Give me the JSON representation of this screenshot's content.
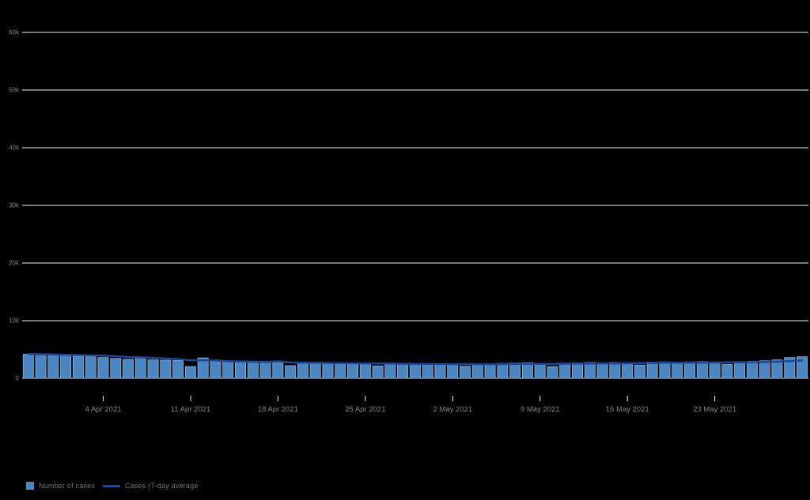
{
  "chart_data": {
    "type": "bar",
    "title": "",
    "xlabel": "",
    "ylabel": "",
    "ylim": [
      0,
      60000
    ],
    "grid": true,
    "legend_position": "bottom-left",
    "x": [
      "29 Mar 2021",
      "30 Mar 2021",
      "31 Mar 2021",
      "1 Apr 2021",
      "2 Apr 2021",
      "3 Apr 2021",
      "4 Apr 2021",
      "5 Apr 2021",
      "6 Apr 2021",
      "7 Apr 2021",
      "8 Apr 2021",
      "9 Apr 2021",
      "10 Apr 2021",
      "11 Apr 2021",
      "12 Apr 2021",
      "13 Apr 2021",
      "14 Apr 2021",
      "15 Apr 2021",
      "16 Apr 2021",
      "17 Apr 2021",
      "18 Apr 2021",
      "19 Apr 2021",
      "20 Apr 2021",
      "21 Apr 2021",
      "22 Apr 2021",
      "23 Apr 2021",
      "24 Apr 2021",
      "25 Apr 2021",
      "26 Apr 2021",
      "27 Apr 2021",
      "28 Apr 2021",
      "29 Apr 2021",
      "30 Apr 2021",
      "1 May 2021",
      "2 May 2021",
      "3 May 2021",
      "4 May 2021",
      "5 May 2021",
      "6 May 2021",
      "7 May 2021",
      "8 May 2021",
      "9 May 2021",
      "10 May 2021",
      "11 May 2021",
      "12 May 2021",
      "13 May 2021",
      "14 May 2021",
      "15 May 2021",
      "16 May 2021",
      "17 May 2021",
      "18 May 2021",
      "19 May 2021",
      "20 May 2021",
      "21 May 2021",
      "22 May 2021",
      "23 May 2021",
      "24 May 2021",
      "25 May 2021",
      "26 May 2021",
      "27 May 2021",
      "28 May 2021",
      "29 May 2021",
      "30 May 2021"
    ],
    "series": [
      {
        "name": "Number of cases",
        "type": "bar",
        "values": [
          4200,
          4150,
          4050,
          3950,
          3850,
          3750,
          3600,
          3450,
          3300,
          3650,
          3200,
          3150,
          3100,
          2050,
          3550,
          2950,
          2900,
          2850,
          2800,
          2800,
          2750,
          2200,
          2750,
          2700,
          2650,
          2650,
          2600,
          2550,
          2150,
          2600,
          2550,
          2500,
          2550,
          2500,
          2450,
          2100,
          2500,
          2550,
          2600,
          2650,
          2700,
          2500,
          2050,
          2650,
          2700,
          2750,
          2700,
          2750,
          2700,
          2300,
          2800,
          2850,
          2800,
          2850,
          2900,
          2800,
          2400,
          2900,
          2950,
          3050,
          3200,
          3600,
          3750
        ]
      },
      {
        "name": "Cases (7-day average",
        "type": "line",
        "values": [
          4200,
          4175,
          4133,
          4088,
          4040,
          3992,
          3936,
          3829,
          3707,
          3650,
          3543,
          3443,
          3350,
          3129,
          3143,
          3093,
          2986,
          2936,
          2886,
          2843,
          2943,
          2750,
          2721,
          2693,
          2664,
          2643,
          2614,
          2586,
          2579,
          2557,
          2536,
          2514,
          2500,
          2486,
          2471,
          2464,
          2450,
          2450,
          2464,
          2479,
          2507,
          2514,
          2507,
          2529,
          2550,
          2571,
          2579,
          2586,
          2614,
          2650,
          2671,
          2693,
          2700,
          2721,
          2743,
          2757,
          2771,
          2786,
          2800,
          2836,
          2886,
          2986,
          3121
        ]
      }
    ],
    "y_ticks": [
      {
        "value": 0,
        "label": "0"
      },
      {
        "value": 10000,
        "label": "10k"
      },
      {
        "value": 20000,
        "label": "20k"
      },
      {
        "value": 30000,
        "label": "30k"
      },
      {
        "value": 40000,
        "label": "40k"
      },
      {
        "value": 50000,
        "label": "50k"
      },
      {
        "value": 60000,
        "label": "60k"
      }
    ],
    "x_tick_labels": [
      "4 Apr 2021",
      "11 Apr 2021",
      "18 Apr 2021",
      "25 Apr 2021",
      "2 May 2021",
      "9 May 2021",
      "16 May 2021",
      "23 May 2021"
    ],
    "x_tick_indices": [
      6,
      13,
      20,
      27,
      34,
      41,
      48,
      55
    ],
    "colors": {
      "bar": "#4a86c2",
      "bar_edge": "#85b2dd",
      "line": "#1a4798",
      "grid": "#f5f5f5",
      "tick_text": "#7d838b",
      "legend_text": "#6f757d",
      "background": "#000000"
    }
  },
  "legend": {
    "items": [
      {
        "label": "Number of cases",
        "swatch": "square"
      },
      {
        "label": "Cases (7-day average",
        "swatch": "line"
      }
    ]
  }
}
